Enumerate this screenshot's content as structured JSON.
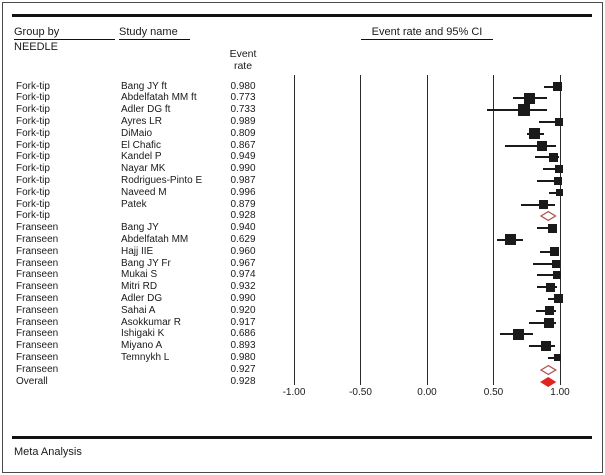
{
  "header": {
    "group_by_label": "Group by",
    "group_by_value": "NEEDLE",
    "study_col_label": "Study name",
    "stat_col_line1": "Event",
    "stat_col_line2": "rate",
    "plot_col_label": "Event rate and 95% CI"
  },
  "footer": {
    "label": "Meta Analysis"
  },
  "colors": {
    "text": "#1a1a1a",
    "marker": "#1a1a1a",
    "gridline": "#2a2a2a",
    "rule": "#111111",
    "summary_outline": "#b0524e",
    "overall_fill": "#e02421"
  },
  "chart_data": {
    "type": "forest",
    "title": "Event rate and 95% CI",
    "group_by": "NEEDLE",
    "xlim": [
      -1.0,
      1.0
    ],
    "x_ticks": [
      -1.0,
      -0.5,
      0.0,
      0.5,
      1.0
    ],
    "x_tick_labels": [
      "-1.00",
      "-0.50",
      "0.00",
      "0.50",
      "1.00"
    ],
    "rows": [
      {
        "group": "Fork-tip",
        "study": "Bang JY ft",
        "rate": "0.980",
        "value": 0.98,
        "ci_low": 0.88,
        "ci_high": 1.0,
        "weight": 9,
        "kind": "study"
      },
      {
        "group": "Fork-tip",
        "study": "Abdelfatah MM ft",
        "rate": "0.773",
        "value": 0.773,
        "ci_low": 0.65,
        "ci_high": 0.9,
        "weight": 11,
        "kind": "study"
      },
      {
        "group": "Fork-tip",
        "study": "Adler DG ft",
        "rate": "0.733",
        "value": 0.733,
        "ci_low": 0.45,
        "ci_high": 0.9,
        "weight": 12,
        "kind": "study"
      },
      {
        "group": "Fork-tip",
        "study": "Ayres LR",
        "rate": "0.989",
        "value": 0.989,
        "ci_low": 0.84,
        "ci_high": 1.0,
        "weight": 8,
        "kind": "study"
      },
      {
        "group": "Fork-tip",
        "study": "DiMaio",
        "rate": "0.809",
        "value": 0.809,
        "ci_low": 0.75,
        "ci_high": 0.88,
        "weight": 11,
        "kind": "study"
      },
      {
        "group": "Fork-tip",
        "study": "El Chafic",
        "rate": "0.867",
        "value": 0.867,
        "ci_low": 0.59,
        "ci_high": 0.97,
        "weight": 10,
        "kind": "study"
      },
      {
        "group": "Fork-tip",
        "study": "Kandel P",
        "rate": "0.949",
        "value": 0.949,
        "ci_low": 0.81,
        "ci_high": 0.99,
        "weight": 9,
        "kind": "study"
      },
      {
        "group": "Fork-tip",
        "study": "Nayar MK",
        "rate": "0.990",
        "value": 0.99,
        "ci_low": 0.87,
        "ci_high": 1.0,
        "weight": 8,
        "kind": "study"
      },
      {
        "group": "Fork-tip",
        "study": "Rodrigues-Pinto E",
        "rate": "0.987",
        "value": 0.987,
        "ci_low": 0.83,
        "ci_high": 1.0,
        "weight": 8,
        "kind": "study"
      },
      {
        "group": "Fork-tip",
        "study": "Naveed M",
        "rate": "0.996",
        "value": 0.996,
        "ci_low": 0.92,
        "ci_high": 1.0,
        "weight": 7,
        "kind": "study"
      },
      {
        "group": "Fork-tip",
        "study": "Patek",
        "rate": "0.879",
        "value": 0.879,
        "ci_low": 0.71,
        "ci_high": 0.96,
        "weight": 9,
        "kind": "study"
      },
      {
        "group": "Fork-tip",
        "study": "",
        "rate": "0.928",
        "value": 0.928,
        "ci_low": 0.856,
        "ci_high": 0.965,
        "weight": 0,
        "kind": "summary"
      },
      {
        "group": "Franseen",
        "study": "Bang JY",
        "rate": "0.940",
        "value": 0.94,
        "ci_low": 0.83,
        "ci_high": 0.98,
        "weight": 9,
        "kind": "study"
      },
      {
        "group": "Franseen",
        "study": "Abdelfatah MM",
        "rate": "0.629",
        "value": 0.629,
        "ci_low": 0.53,
        "ci_high": 0.72,
        "weight": 11,
        "kind": "study"
      },
      {
        "group": "Franseen",
        "study": "Hajj IIE",
        "rate": "0.960",
        "value": 0.96,
        "ci_low": 0.85,
        "ci_high": 0.99,
        "weight": 9,
        "kind": "study"
      },
      {
        "group": "Franseen",
        "study": "Bang JY Fr",
        "rate": "0.967",
        "value": 0.967,
        "ci_low": 0.8,
        "ci_high": 0.99,
        "weight": 8,
        "kind": "study"
      },
      {
        "group": "Franseen",
        "study": "Mukai S",
        "rate": "0.974",
        "value": 0.974,
        "ci_low": 0.83,
        "ci_high": 1.0,
        "weight": 8,
        "kind": "study"
      },
      {
        "group": "Franseen",
        "study": "Mitri RD",
        "rate": "0.932",
        "value": 0.932,
        "ci_low": 0.83,
        "ci_high": 0.98,
        "weight": 9,
        "kind": "study"
      },
      {
        "group": "Franseen",
        "study": "Adler DG",
        "rate": "0.990",
        "value": 0.99,
        "ci_low": 0.91,
        "ci_high": 1.0,
        "weight": 9,
        "kind": "study"
      },
      {
        "group": "Franseen",
        "study": "Sahai A",
        "rate": "0.920",
        "value": 0.92,
        "ci_low": 0.82,
        "ci_high": 0.97,
        "weight": 9,
        "kind": "study"
      },
      {
        "group": "Franseen",
        "study": "Asokkumar R",
        "rate": "0.917",
        "value": 0.917,
        "ci_low": 0.77,
        "ci_high": 0.97,
        "weight": 10,
        "kind": "study"
      },
      {
        "group": "Franseen",
        "study": "Ishigaki K",
        "rate": "0.686",
        "value": 0.686,
        "ci_low": 0.55,
        "ci_high": 0.8,
        "weight": 11,
        "kind": "study"
      },
      {
        "group": "Franseen",
        "study": "Miyano A",
        "rate": "0.893",
        "value": 0.893,
        "ci_low": 0.77,
        "ci_high": 0.96,
        "weight": 10,
        "kind": "study"
      },
      {
        "group": "Franseen",
        "study": "Temnykh L",
        "rate": "0.980",
        "value": 0.98,
        "ci_low": 0.91,
        "ci_high": 1.0,
        "weight": 7,
        "kind": "study"
      },
      {
        "group": "Franseen",
        "study": "",
        "rate": "0.927",
        "value": 0.927,
        "ci_low": 0.855,
        "ci_high": 0.966,
        "weight": 0,
        "kind": "summary"
      },
      {
        "group": "Overall",
        "study": "",
        "rate": "0.928",
        "value": 0.928,
        "ci_low": 0.857,
        "ci_high": 0.965,
        "weight": 0,
        "kind": "overall"
      }
    ]
  }
}
